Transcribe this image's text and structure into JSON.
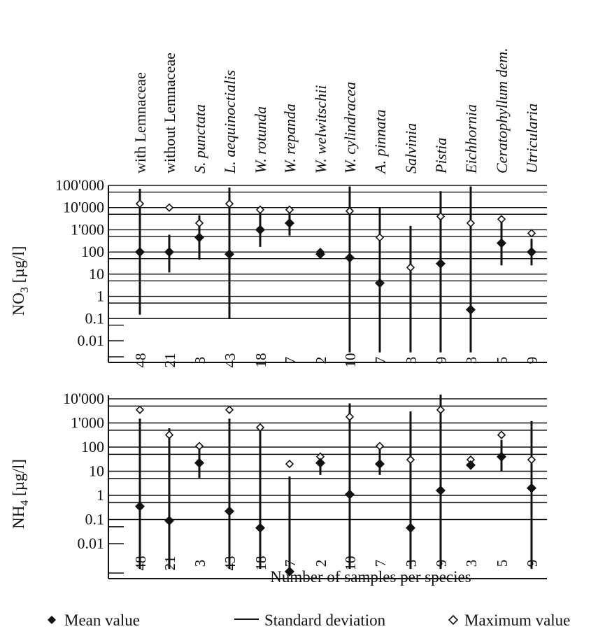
{
  "categories": [
    {
      "label": "with Lemnaceae",
      "italic": false
    },
    {
      "label": "without Lemnaceae",
      "italic": false
    },
    {
      "label": "S. punctata",
      "italic": true
    },
    {
      "label": "L. aequinoctialis",
      "italic": true
    },
    {
      "label": "W. rotunda",
      "italic": true
    },
    {
      "label": "W. repanda",
      "italic": true
    },
    {
      "label": "W. welwitschii",
      "italic": true
    },
    {
      "label": "W. cylindracea",
      "italic": true
    },
    {
      "label": "A. pinnata",
      "italic": true
    },
    {
      "label": "Salvinia",
      "italic": true
    },
    {
      "label": "Pistia",
      "italic": true
    },
    {
      "label": "Eichhornia",
      "italic": true
    },
    {
      "label": "Ceratophyllum dem.",
      "italic": true
    },
    {
      "label": "Utricularia",
      "italic": true
    }
  ],
  "sample_counts": [
    "48",
    "21",
    "3",
    "43",
    "18",
    "7",
    "2",
    "10",
    "7",
    "3",
    "9",
    "3",
    "5",
    "9"
  ],
  "xlabel": "Number of samples per species",
  "legend": {
    "mean": "Mean value",
    "std": "Standard deviation",
    "max": "Maximum value"
  },
  "colors": {
    "ink": "#111111",
    "background": "#ffffff"
  },
  "chart_data": [
    {
      "type": "scatter",
      "ylabel_main": "NO",
      "ylabel_sub": "3",
      "ylabel_unit": " [µg/l]",
      "yscale": "log",
      "ylim": [
        0.005,
        100000
      ],
      "yticks": [
        0.01,
        0.1,
        1,
        10,
        100,
        1000,
        10000,
        100000
      ],
      "yticklabels": [
        "0.01",
        "0.1",
        "1",
        "10",
        "100",
        "1'000",
        "10'000",
        "100'000"
      ],
      "mean": [
        100,
        100,
        450,
        80,
        1000,
        2000,
        80,
        55,
        4,
        null,
        30,
        0.25,
        250,
        100
      ],
      "max": [
        15000,
        10000,
        2000,
        15000,
        8000,
        8000,
        100,
        7000,
        450,
        20,
        4000,
        2000,
        3000,
        700
      ],
      "sd_low": [
        0.15,
        12,
        45,
        0.1,
        170,
        550,
        65,
        0.003,
        0.003,
        0.003,
        0.003,
        0.003,
        25,
        25
      ],
      "sd_high": [
        70000,
        600,
        4500,
        80000,
        8000,
        8000,
        100,
        90000,
        10000,
        1500,
        55000,
        90000,
        3000,
        400
      ]
    },
    {
      "type": "scatter",
      "ylabel_main": "NH",
      "ylabel_sub": "4",
      "ylabel_unit": " [µg/l]",
      "yscale": "log",
      "ylim": [
        0.001,
        10000
      ],
      "yticks": [
        0.01,
        0.1,
        1,
        10,
        100,
        1000,
        10000
      ],
      "yticklabels": [
        "0.01",
        "0.1",
        "1",
        "10",
        "100",
        "1'000",
        "10'000"
      ],
      "mean": [
        0.35,
        0.09,
        22,
        0.22,
        0.045,
        0.0007,
        22,
        1.1,
        20,
        0.045,
        1.6,
        18,
        40,
        2
      ],
      "max": [
        3500,
        320,
        110,
        3500,
        650,
        20,
        40,
        1800,
        110,
        30,
        3500,
        30,
        320,
        30
      ],
      "sd_low": [
        0.0009,
        0.0009,
        5,
        0.0009,
        0.0009,
        0.0009,
        7,
        0.0009,
        7,
        0.0009,
        0.0009,
        13,
        10,
        0.0009
      ],
      "sd_high": [
        1500,
        600,
        110,
        1500,
        800,
        6,
        40,
        6500,
        110,
        3000,
        15000,
        30,
        200,
        1200
      ]
    }
  ]
}
